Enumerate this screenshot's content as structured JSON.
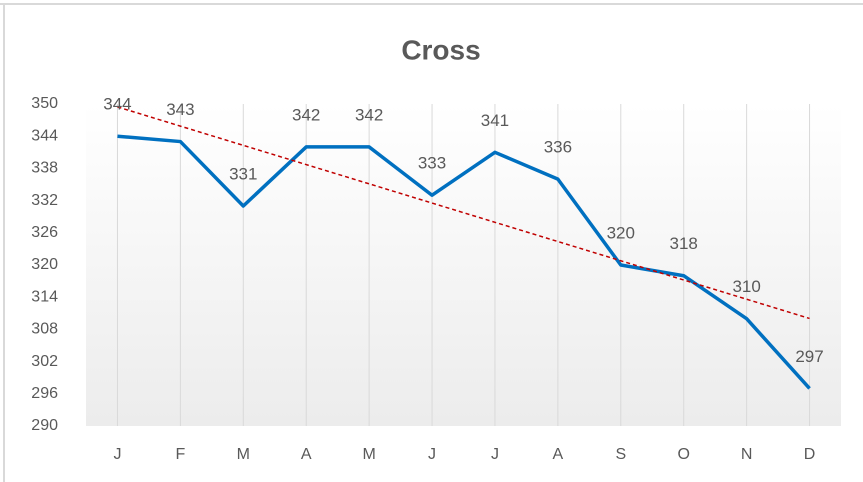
{
  "chart_data": {
    "type": "line",
    "title": "Cross",
    "categories": [
      "J",
      "F",
      "M",
      "A",
      "M",
      "J",
      "J",
      "A",
      "S",
      "O",
      "N",
      "D"
    ],
    "series": [
      {
        "name": "Cross",
        "color": "#0070c0",
        "values": [
          344,
          343,
          331,
          342,
          342,
          333,
          341,
          336,
          320,
          318,
          310,
          297
        ]
      }
    ],
    "ylim": [
      290,
      350
    ],
    "yticks": [
      290,
      296,
      302,
      308,
      314,
      320,
      326,
      332,
      338,
      344,
      350
    ],
    "grid": "vertical",
    "trendline": "linear",
    "trendline_color": "#c00000",
    "data_labels": true
  }
}
